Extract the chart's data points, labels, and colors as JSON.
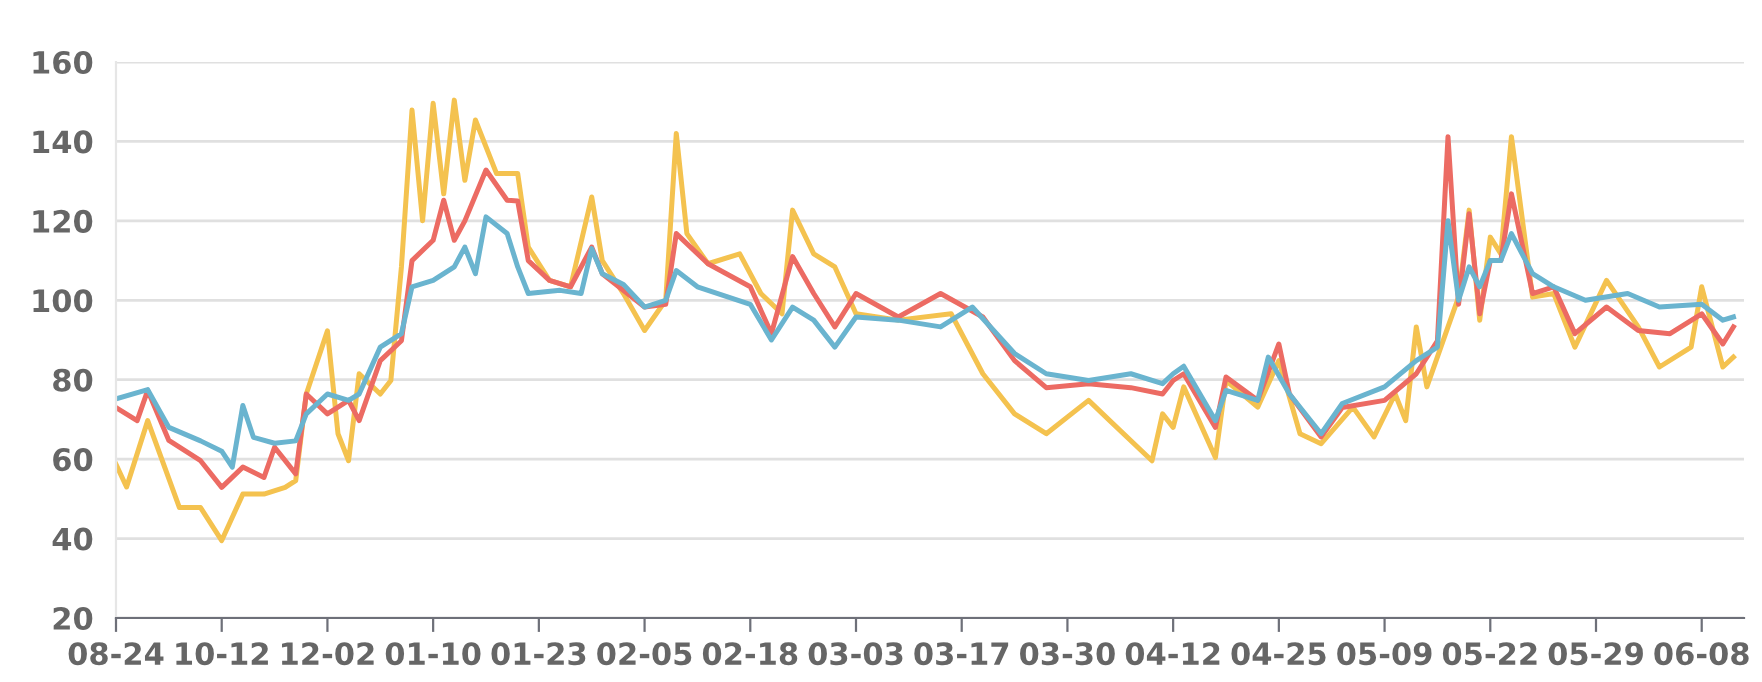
{
  "chart_data": {
    "type": "line",
    "grid": "y",
    "ylim": [
      20,
      160
    ],
    "yticks": [
      20,
      40,
      60,
      80,
      100,
      120,
      140,
      160
    ],
    "categories": [
      "08-24",
      null,
      null,
      null,
      null,
      null,
      null,
      null,
      null,
      null,
      "10-12",
      null,
      null,
      null,
      null,
      null,
      null,
      null,
      null,
      null,
      "12-02",
      null,
      null,
      null,
      null,
      null,
      null,
      null,
      null,
      null,
      "01-10",
      null,
      null,
      null,
      null,
      null,
      null,
      null,
      null,
      null,
      "01-23",
      null,
      null,
      null,
      null,
      null,
      null,
      null,
      null,
      null,
      "02-05",
      null,
      null,
      null,
      null,
      null,
      null,
      null,
      null,
      null,
      "02-18",
      null,
      null,
      null,
      null,
      null,
      null,
      null,
      null,
      null,
      "03-03",
      null,
      null,
      null,
      null,
      null,
      null,
      null,
      null,
      null,
      "03-17",
      null,
      null,
      null,
      null,
      null,
      null,
      null,
      null,
      null,
      "03-30",
      null,
      null,
      null,
      null,
      null,
      null,
      null,
      null,
      null,
      "04-12",
      null,
      null,
      null,
      null,
      null,
      null,
      null,
      null,
      null,
      "04-25",
      null,
      null,
      null,
      null,
      null,
      null,
      null,
      null,
      null,
      "05-09",
      null,
      null,
      null,
      null,
      null,
      null,
      null,
      null,
      null,
      "05-22",
      null,
      null,
      null,
      null,
      null,
      null,
      null,
      null,
      null,
      "05-29",
      null,
      null,
      null,
      null,
      null,
      null,
      null,
      null,
      null,
      "06-08",
      null,
      null,
      null,
      null
    ],
    "series": [
      {
        "color": "#f4c24f",
        "values": [
          58.7,
          53,
          null,
          69.7,
          null,
          null,
          47.8,
          null,
          47.8,
          null,
          39.5,
          null,
          51.2,
          null,
          51.2,
          null,
          52.9,
          54.6,
          76.4,
          null,
          92.3,
          66.4,
          59.6,
          81.5,
          null,
          76.4,
          79.8,
          108.4,
          147.9,
          120,
          149.6,
          126.8,
          150.4,
          130.2,
          145.4,
          null,
          131.9,
          null,
          131.9,
          113.4,
          null,
          105,
          null,
          103.4,
          null,
          126,
          110,
          null,
          101.7,
          null,
          92.4,
          null,
          100,
          142,
          116.8,
          null,
          109.2,
          null,
          null,
          111.7,
          null,
          101.7,
          null,
          96.6,
          122.7,
          null,
          111.7,
          null,
          108.4,
          null,
          96.6,
          null,
          null,
          null,
          95,
          null,
          null,
          null,
          null,
          96.6,
          null,
          null,
          81.5,
          null,
          null,
          71.4,
          null,
          null,
          66.4,
          null,
          null,
          null,
          74.8,
          null,
          69.7,
          null,
          null,
          null,
          59.6,
          71.4,
          68,
          78.2,
          null,
          null,
          60.4,
          79.8,
          null,
          null,
          73.1,
          null,
          84.8,
          null,
          66.4,
          null,
          63.9,
          null,
          null,
          73.1,
          null,
          65.6,
          null,
          76.4,
          69.7,
          93.3,
          78.2,
          null,
          93.3,
          100.8,
          122.7,
          95,
          115.9,
          111.7,
          141.2,
          null,
          100.8,
          null,
          101.7,
          null,
          88.2,
          null,
          null,
          105,
          null,
          null,
          93.3,
          null,
          83.2,
          null,
          null,
          88.2,
          103.4,
          null,
          83.2,
          85.7,
          null
        ]
      },
      {
        "color": "#ec6b63",
        "values": [
          73,
          null,
          69.7,
          77.3,
          null,
          64.7,
          null,
          null,
          59.6,
          null,
          52.9,
          null,
          58,
          null,
          55.4,
          63,
          null,
          56.3,
          76.4,
          null,
          71.4,
          null,
          74.8,
          69.7,
          null,
          84.8,
          null,
          89.8,
          110,
          null,
          115.1,
          125.2,
          115.1,
          120,
          null,
          132.8,
          null,
          125.2,
          125,
          110,
          null,
          105,
          null,
          103.4,
          null,
          113.4,
          106.7,
          null,
          null,
          null,
          98.3,
          null,
          99,
          116.8,
          null,
          null,
          109.2,
          null,
          null,
          null,
          103.4,
          null,
          91.6,
          null,
          111,
          null,
          101.7,
          null,
          93.3,
          null,
          101.7,
          null,
          null,
          null,
          95.8,
          null,
          null,
          null,
          101.7,
          null,
          null,
          null,
          95.8,
          null,
          null,
          84.8,
          null,
          null,
          78,
          null,
          null,
          null,
          79,
          null,
          null,
          null,
          78,
          null,
          null,
          76.4,
          79.8,
          81.5,
          null,
          null,
          68,
          80.7,
          null,
          null,
          74.8,
          null,
          89,
          76.4,
          null,
          null,
          65.6,
          null,
          73,
          null,
          null,
          null,
          74.8,
          null,
          null,
          81.5,
          null,
          89.8,
          141.2,
          99,
          121.8,
          96.6,
          110,
          110,
          126.8,
          null,
          101.7,
          null,
          103.4,
          null,
          91.6,
          null,
          null,
          98.3,
          null,
          null,
          92.4,
          null,
          null,
          91.6,
          null,
          null,
          96.6,
          null,
          89,
          93.3,
          null
        ]
      },
      {
        "color": "#6ab4cf",
        "values": [
          75.2,
          null,
          null,
          77.5,
          null,
          68,
          null,
          null,
          64.6,
          null,
          62,
          58,
          73.5,
          65.5,
          null,
          64,
          null,
          64.6,
          71.4,
          null,
          76.4,
          null,
          74.8,
          76.4,
          null,
          88.2,
          null,
          91.6,
          103.4,
          null,
          105,
          null,
          108.4,
          113.4,
          106.7,
          121,
          null,
          116.8,
          108.4,
          101.7,
          null,
          null,
          102.5,
          null,
          101.7,
          113,
          106.7,
          null,
          104,
          null,
          98.3,
          null,
          100,
          107.5,
          null,
          103.4,
          null,
          null,
          null,
          null,
          99,
          null,
          90,
          null,
          98.3,
          null,
          95,
          null,
          88.2,
          null,
          95.8,
          null,
          null,
          null,
          95,
          null,
          null,
          null,
          93.3,
          null,
          null,
          98.3,
          null,
          null,
          null,
          86.6,
          null,
          null,
          81.5,
          null,
          null,
          null,
          79.8,
          null,
          null,
          null,
          81.5,
          null,
          null,
          79,
          81.5,
          83.4,
          null,
          null,
          69.7,
          77.3,
          null,
          null,
          74.8,
          85.7,
          null,
          76.4,
          null,
          null,
          66.4,
          null,
          74,
          null,
          null,
          null,
          78.2,
          null,
          null,
          84.8,
          null,
          88.2,
          120,
          100,
          108.4,
          103.4,
          110,
          110,
          116.8,
          null,
          106.7,
          null,
          103.4,
          null,
          null,
          100,
          null,
          null,
          null,
          101.7,
          null,
          null,
          98.3,
          null,
          null,
          null,
          99,
          null,
          95,
          95.8,
          null
        ]
      }
    ]
  }
}
